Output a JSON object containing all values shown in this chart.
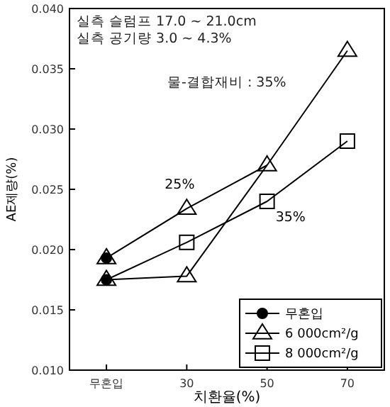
{
  "chart_data": {
    "type": "line",
    "xlabel": "치환율(%)",
    "ylabel": "AE제량(%)",
    "categories": [
      "무혼입",
      "30",
      "50",
      "70"
    ],
    "ylim": [
      0.01,
      0.04
    ],
    "yticks": [
      {
        "value": 0.01,
        "label": "0.010"
      },
      {
        "value": 0.015,
        "label": "0.015"
      },
      {
        "value": 0.02,
        "label": "0.020"
      },
      {
        "value": 0.025,
        "label": "0.025"
      },
      {
        "value": 0.03,
        "label": "0.030"
      },
      {
        "value": 0.035,
        "label": "0.035"
      },
      {
        "value": 0.04,
        "label": "0.040"
      }
    ],
    "grid": false,
    "legend": "bottom right",
    "series": [
      {
        "name": "6 000cm²/g",
        "marker": "triangle",
        "color": "#000000",
        "values": [
          0.0193,
          0.0234,
          0.027,
          null
        ]
      },
      {
        "marker": "triangle",
        "color": "#000000",
        "values": [
          0.0175,
          0.0178,
          0.027,
          0.0365
        ]
      },
      {
        "name": "8 000cm²/g",
        "marker": "square",
        "color": "#000000",
        "values": [
          0.0175,
          0.0206,
          0.024,
          0.029
        ]
      },
      {
        "name": "무혼입",
        "type": "scatter",
        "marker": "circle",
        "color": "#000000",
        "x": [
          "무혼입",
          "무혼입"
        ],
        "values": [
          0.0193,
          0.0175
        ]
      }
    ],
    "annotations": [
      "실측 슬럼프 17.0 ~ 21.0cm",
      "실측 공기량 3.0 ~ 4.3%",
      "물-결합재비 : 35%",
      {
        "text": "25%",
        "x": "30",
        "y": 0.0234
      },
      {
        "text": "35%",
        "x": "50",
        "y": 0.024
      }
    ]
  }
}
